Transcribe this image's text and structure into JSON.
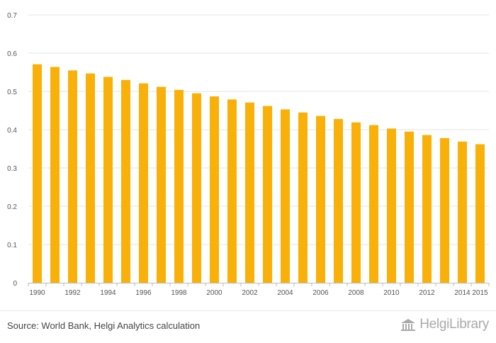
{
  "chart_data": {
    "type": "bar",
    "title": "",
    "xlabel": "",
    "ylabel": "",
    "ylim": [
      0,
      0.7
    ],
    "yticks": [
      "0",
      "0.1",
      "0.2",
      "0.3",
      "0.4",
      "0.5",
      "0.6",
      "0.7"
    ],
    "grid": true,
    "categories": [
      "1990",
      "1991",
      "1992",
      "1993",
      "1994",
      "1995",
      "1996",
      "1997",
      "1998",
      "1999",
      "2000",
      "2001",
      "2002",
      "2003",
      "2004",
      "2005",
      "2006",
      "2007",
      "2008",
      "2009",
      "2010",
      "2011",
      "2012",
      "2013",
      "2014",
      "2015"
    ],
    "xtick_labels": [
      "1990",
      "",
      "1992",
      "",
      "1994",
      "",
      "1996",
      "",
      "1998",
      "",
      "2000",
      "",
      "2002",
      "",
      "2004",
      "",
      "2006",
      "",
      "2008",
      "",
      "2010",
      "",
      "2012",
      "",
      "2014",
      "2015"
    ],
    "values": [
      0.571,
      0.564,
      0.555,
      0.547,
      0.538,
      0.53,
      0.521,
      0.512,
      0.504,
      0.495,
      0.487,
      0.479,
      0.471,
      0.462,
      0.453,
      0.445,
      0.436,
      0.428,
      0.419,
      0.412,
      0.403,
      0.395,
      0.386,
      0.378,
      0.369,
      0.362
    ],
    "bar_color": "#f9b109",
    "grid_color": "#e6e6e6"
  },
  "footer": {
    "source": "Source: World Bank, Helgi Analytics calculation",
    "brand": "HelgiLibrary"
  }
}
